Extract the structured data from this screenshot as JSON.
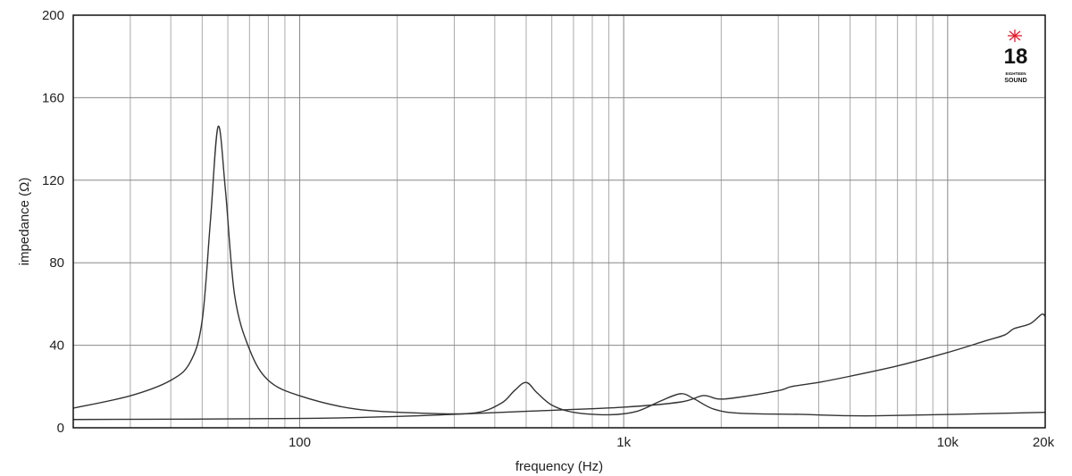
{
  "chart_data": {
    "type": "line",
    "xlabel": "frequency (Hz)",
    "ylabel": "impedance (Ω)",
    "xscale": "log",
    "xlim": [
      20,
      20000
    ],
    "ylim": [
      0,
      200
    ],
    "grid": true,
    "x_tick_labels": [
      {
        "value": 100,
        "label": "100"
      },
      {
        "value": 1000,
        "label": "1k"
      },
      {
        "value": 10000,
        "label": "10k"
      },
      {
        "value": 20000,
        "label": "20k"
      }
    ],
    "y_ticks": [
      0,
      40,
      80,
      120,
      160,
      200
    ],
    "series": [
      {
        "points": [
          [
            20,
            9.5
          ],
          [
            30,
            15.5
          ],
          [
            40,
            23
          ],
          [
            46,
            32
          ],
          [
            50,
            52
          ],
          [
            53,
            100
          ],
          [
            56,
            146
          ],
          [
            59,
            115
          ],
          [
            63,
            64
          ],
          [
            70,
            38
          ],
          [
            80,
            23
          ],
          [
            100,
            15.5
          ],
          [
            150,
            9
          ],
          [
            250,
            7
          ],
          [
            350,
            7.3
          ],
          [
            420,
            12
          ],
          [
            460,
            18
          ],
          [
            500,
            22
          ],
          [
            540,
            17
          ],
          [
            600,
            11
          ],
          [
            700,
            7.5
          ],
          [
            900,
            6.3
          ],
          [
            1100,
            8
          ],
          [
            1300,
            13
          ],
          [
            1500,
            16.5
          ],
          [
            1650,
            14
          ],
          [
            1900,
            9
          ],
          [
            2300,
            7
          ],
          [
            3500,
            6.5
          ],
          [
            6000,
            5.8
          ],
          [
            20000,
            7.5
          ]
        ]
      },
      {
        "points": [
          [
            20,
            4
          ],
          [
            100,
            4.5
          ],
          [
            200,
            5.5
          ],
          [
            300,
            6.5
          ],
          [
            500,
            8
          ],
          [
            1000,
            10
          ],
          [
            1500,
            12.5
          ],
          [
            1760,
            15.6
          ],
          [
            1950,
            14
          ],
          [
            2200,
            14.5
          ],
          [
            3000,
            18
          ],
          [
            3300,
            20
          ],
          [
            4000,
            22
          ],
          [
            5000,
            25
          ],
          [
            7000,
            30
          ],
          [
            10000,
            36.5
          ],
          [
            13000,
            42
          ],
          [
            15000,
            45
          ],
          [
            16000,
            48
          ],
          [
            18000,
            50.5
          ],
          [
            19500,
            55
          ],
          [
            20000,
            54
          ]
        ]
      }
    ],
    "colors": {
      "line": "#333333",
      "grid": "#999999",
      "logo_star": "#e8192c"
    }
  },
  "logo": {
    "number": "18",
    "line1": "EIGHTEEN",
    "line2": "SOUND"
  }
}
